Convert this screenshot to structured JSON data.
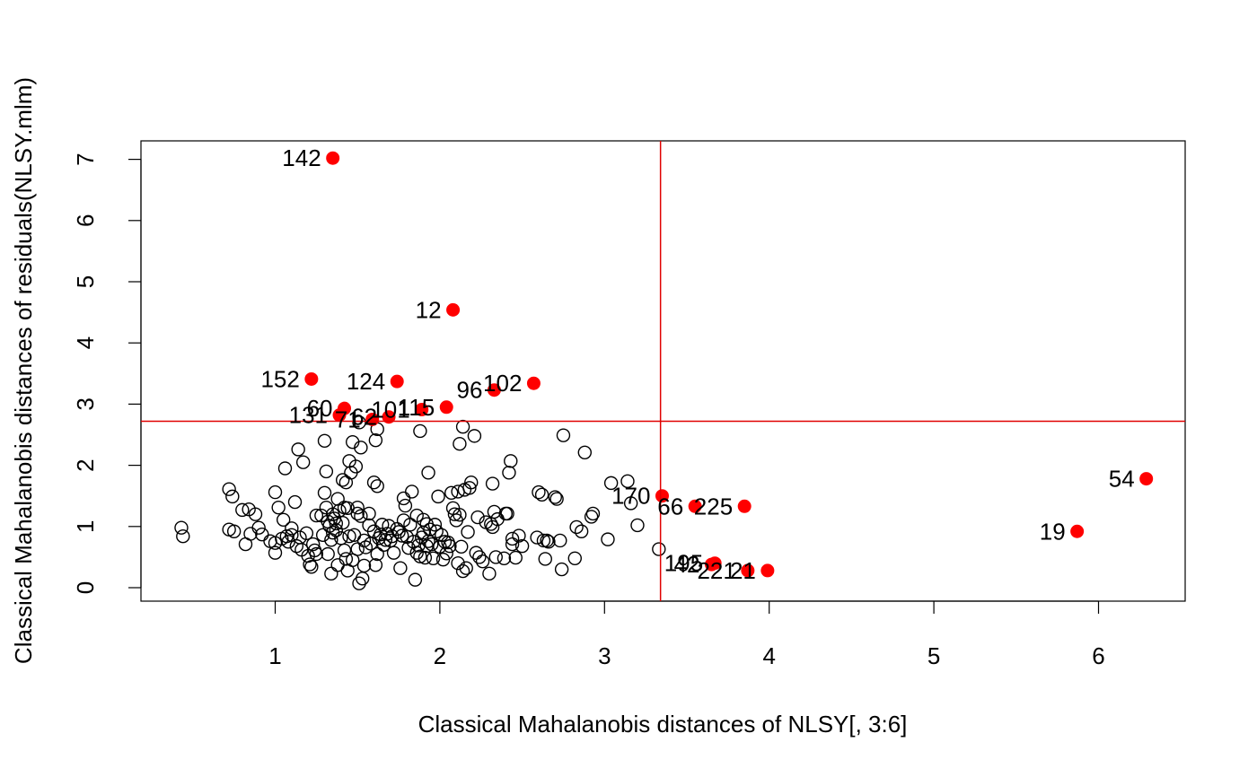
{
  "chart_data": {
    "type": "scatter",
    "xlabel": "Classical Mahalanobis distances of NLSY[, 3:6]",
    "ylabel": "Classical Mahalanobis distances of residuals(NLSY.mlm)",
    "xlim": [
      0.4,
      6.3
    ],
    "ylim": [
      0.07,
      7.0
    ],
    "x_ticks": [
      1,
      2,
      3,
      4,
      5,
      6
    ],
    "y_ticks": [
      0,
      1,
      2,
      3,
      4,
      5,
      6,
      7
    ],
    "cutoff_x": 3.34,
    "cutoff_y": 2.72,
    "cutoff_color": "#e00000",
    "outlier_color": "#ff0000",
    "grid": false,
    "outliers": [
      {
        "label": "142",
        "x": 1.35,
        "y": 7.02
      },
      {
        "label": "12",
        "x": 2.08,
        "y": 4.54
      },
      {
        "label": "152",
        "x": 1.22,
        "y": 3.41
      },
      {
        "label": "124",
        "x": 1.74,
        "y": 3.37
      },
      {
        "label": "102",
        "x": 2.57,
        "y": 3.34
      },
      {
        "label": "96",
        "x": 2.33,
        "y": 3.23
      },
      {
        "label": "60",
        "x": 1.42,
        "y": 2.93
      },
      {
        "label": "101",
        "x": 1.89,
        "y": 2.91
      },
      {
        "label": "115",
        "x": 2.04,
        "y": 2.95
      },
      {
        "label": "131",
        "x": 1.39,
        "y": 2.82
      },
      {
        "label": "71",
        "x": 1.59,
        "y": 2.75
      },
      {
        "label": "62",
        "x": 1.69,
        "y": 2.79
      },
      {
        "label": "54",
        "x": 6.29,
        "y": 1.78
      },
      {
        "label": "170",
        "x": 3.35,
        "y": 1.5
      },
      {
        "label": "66",
        "x": 3.55,
        "y": 1.33
      },
      {
        "label": "225",
        "x": 3.85,
        "y": 1.33
      },
      {
        "label": "19",
        "x": 5.87,
        "y": 0.92
      },
      {
        "label": "195",
        "x": 3.67,
        "y": 0.4
      },
      {
        "label": "42",
        "x": 3.65,
        "y": 0.38
      },
      {
        "label": "221",
        "x": 3.87,
        "y": 0.28
      },
      {
        "label": "21",
        "x": 3.99,
        "y": 0.28
      }
    ],
    "points": [
      [
        0.43,
        0.98
      ],
      [
        0.44,
        0.84
      ],
      [
        0.72,
        1.61
      ],
      [
        0.72,
        0.95
      ],
      [
        0.74,
        1.49
      ],
      [
        0.75,
        0.92
      ],
      [
        0.8,
        1.27
      ],
      [
        0.82,
        0.71
      ],
      [
        0.84,
        1.28
      ],
      [
        0.85,
        0.88
      ],
      [
        0.88,
        1.2
      ],
      [
        0.9,
        0.98
      ],
      [
        0.92,
        0.87
      ],
      [
        0.97,
        0.76
      ],
      [
        1.0,
        1.56
      ],
      [
        1.0,
        0.73
      ],
      [
        1.0,
        0.57
      ],
      [
        1.02,
        1.31
      ],
      [
        1.04,
        0.8
      ],
      [
        1.05,
        1.11
      ],
      [
        1.06,
        1.95
      ],
      [
        1.07,
        0.84
      ],
      [
        1.08,
        0.75
      ],
      [
        1.1,
        0.86
      ],
      [
        1.1,
        0.97
      ],
      [
        1.12,
        1.4
      ],
      [
        1.13,
        0.68
      ],
      [
        1.14,
        2.26
      ],
      [
        1.15,
        0.82
      ],
      [
        1.16,
        0.62
      ],
      [
        1.17,
        2.05
      ],
      [
        1.19,
        0.89
      ],
      [
        1.2,
        0.52
      ],
      [
        1.21,
        0.38
      ],
      [
        1.22,
        0.34
      ],
      [
        1.23,
        0.71
      ],
      [
        1.24,
        0.61
      ],
      [
        1.25,
        1.18
      ],
      [
        1.25,
        0.55
      ],
      [
        1.28,
        1.18
      ],
      [
        1.29,
        0.86
      ],
      [
        1.3,
        2.4
      ],
      [
        1.3,
        1.55
      ],
      [
        1.31,
        1.9
      ],
      [
        1.31,
        1.31
      ],
      [
        1.32,
        1.08
      ],
      [
        1.32,
        0.55
      ],
      [
        1.33,
        1.01
      ],
      [
        1.34,
        0.78
      ],
      [
        1.34,
        0.23
      ],
      [
        1.35,
        1.2
      ],
      [
        1.35,
        0.9
      ],
      [
        1.36,
        1.13
      ],
      [
        1.37,
        1.05
      ],
      [
        1.37,
        0.94
      ],
      [
        1.38,
        0.37
      ],
      [
        1.38,
        1.45
      ],
      [
        1.39,
        1.26
      ],
      [
        1.4,
        0.81
      ],
      [
        1.41,
        1.76
      ],
      [
        1.41,
        1.06
      ],
      [
        1.42,
        1.31
      ],
      [
        1.42,
        0.61
      ],
      [
        1.43,
        1.72
      ],
      [
        1.43,
        0.47
      ],
      [
        1.44,
        1.3
      ],
      [
        1.44,
        0.28
      ],
      [
        1.45,
        0.84
      ],
      [
        1.45,
        2.07
      ],
      [
        1.46,
        1.88
      ],
      [
        1.47,
        0.45
      ],
      [
        1.47,
        2.38
      ],
      [
        1.48,
        0.86
      ],
      [
        1.49,
        1.98
      ],
      [
        1.5,
        1.21
      ],
      [
        1.5,
        0.63
      ],
      [
        1.5,
        1.31
      ],
      [
        1.51,
        0.07
      ],
      [
        1.51,
        2.7
      ],
      [
        1.52,
        1.17
      ],
      [
        1.52,
        2.29
      ],
      [
        1.53,
        0.15
      ],
      [
        1.54,
        0.77
      ],
      [
        1.54,
        0.36
      ],
      [
        1.55,
        0.66
      ],
      [
        1.57,
        1.21
      ],
      [
        1.57,
        1.02
      ],
      [
        1.58,
        0.72
      ],
      [
        1.6,
        0.92
      ],
      [
        1.6,
        1.72
      ],
      [
        1.61,
        0.37
      ],
      [
        1.61,
        2.41
      ],
      [
        1.62,
        2.59
      ],
      [
        1.62,
        1.66
      ],
      [
        1.62,
        0.55
      ],
      [
        1.63,
        0.81
      ],
      [
        1.64,
        0.87
      ],
      [
        1.65,
        1.03
      ],
      [
        1.66,
        0.7
      ],
      [
        1.67,
        0.78
      ],
      [
        1.68,
        0.88
      ],
      [
        1.69,
        1.01
      ],
      [
        1.7,
        0.77
      ],
      [
        1.71,
        0.84
      ],
      [
        1.72,
        0.57
      ],
      [
        1.74,
        0.96
      ],
      [
        1.75,
        0.91
      ],
      [
        1.76,
        0.32
      ],
      [
        1.77,
        0.85
      ],
      [
        1.78,
        1.1
      ],
      [
        1.78,
        1.46
      ],
      [
        1.79,
        1.34
      ],
      [
        1.8,
        0.83
      ],
      [
        1.81,
        0.65
      ],
      [
        1.82,
        1.03
      ],
      [
        1.83,
        1.57
      ],
      [
        1.84,
        0.75
      ],
      [
        1.85,
        0.13
      ],
      [
        1.86,
        0.57
      ],
      [
        1.86,
        1.18
      ],
      [
        1.87,
        0.69
      ],
      [
        1.88,
        0.51
      ],
      [
        1.88,
        2.56
      ],
      [
        1.89,
        0.82
      ],
      [
        1.9,
        0.9
      ],
      [
        1.9,
        1.11
      ],
      [
        1.91,
        0.49
      ],
      [
        1.92,
        0.68
      ],
      [
        1.92,
        1.04
      ],
      [
        1.93,
        1.88
      ],
      [
        1.93,
        0.76
      ],
      [
        1.94,
        0.95
      ],
      [
        1.95,
        0.71
      ],
      [
        1.96,
        0.48
      ],
      [
        1.97,
        1.03
      ],
      [
        1.98,
        0.92
      ],
      [
        1.99,
        1.49
      ],
      [
        2.0,
        0.67
      ],
      [
        2.01,
        0.86
      ],
      [
        2.02,
        0.46
      ],
      [
        2.03,
        0.75
      ],
      [
        2.04,
        0.56
      ],
      [
        2.05,
        0.74
      ],
      [
        2.06,
        0.68
      ],
      [
        2.07,
        1.55
      ],
      [
        2.08,
        1.3
      ],
      [
        2.09,
        1.2
      ],
      [
        2.1,
        1.1
      ],
      [
        2.11,
        1.57
      ],
      [
        2.11,
        0.4
      ],
      [
        2.12,
        2.35
      ],
      [
        2.12,
        1.19
      ],
      [
        2.13,
        0.67
      ],
      [
        2.14,
        2.63
      ],
      [
        2.14,
        0.27
      ],
      [
        2.15,
        1.6
      ],
      [
        2.16,
        0.32
      ],
      [
        2.17,
        0.91
      ],
      [
        2.18,
        1.63
      ],
      [
        2.19,
        1.72
      ],
      [
        2.21,
        2.48
      ],
      [
        2.22,
        0.57
      ],
      [
        2.23,
        1.15
      ],
      [
        2.24,
        0.5
      ],
      [
        2.26,
        0.43
      ],
      [
        2.28,
        1.07
      ],
      [
        2.3,
        0.23
      ],
      [
        2.31,
        1.04
      ],
      [
        2.32,
        0.99
      ],
      [
        2.32,
        1.7
      ],
      [
        2.33,
        1.24
      ],
      [
        2.34,
        0.5
      ],
      [
        2.35,
        1.12
      ],
      [
        2.39,
        0.48
      ],
      [
        2.4,
        1.21
      ],
      [
        2.41,
        1.21
      ],
      [
        2.42,
        1.88
      ],
      [
        2.43,
        2.07
      ],
      [
        2.44,
        0.71
      ],
      [
        2.44,
        0.8
      ],
      [
        2.46,
        0.49
      ],
      [
        2.48,
        0.85
      ],
      [
        2.5,
        0.68
      ],
      [
        2.59,
        0.82
      ],
      [
        2.6,
        1.56
      ],
      [
        2.62,
        1.52
      ],
      [
        2.63,
        0.77
      ],
      [
        2.64,
        0.47
      ],
      [
        2.65,
        0.77
      ],
      [
        2.66,
        0.75
      ],
      [
        2.7,
        1.48
      ],
      [
        2.71,
        1.45
      ],
      [
        2.73,
        0.77
      ],
      [
        2.74,
        0.3
      ],
      [
        2.75,
        2.49
      ],
      [
        2.82,
        0.48
      ],
      [
        2.83,
        0.99
      ],
      [
        2.86,
        0.92
      ],
      [
        2.88,
        2.21
      ],
      [
        2.92,
        1.16
      ],
      [
        2.93,
        1.21
      ],
      [
        3.02,
        0.79
      ],
      [
        3.04,
        1.71
      ],
      [
        3.14,
        1.74
      ],
      [
        3.16,
        1.38
      ],
      [
        3.2,
        1.02
      ],
      [
        3.33,
        0.63
      ]
    ]
  }
}
